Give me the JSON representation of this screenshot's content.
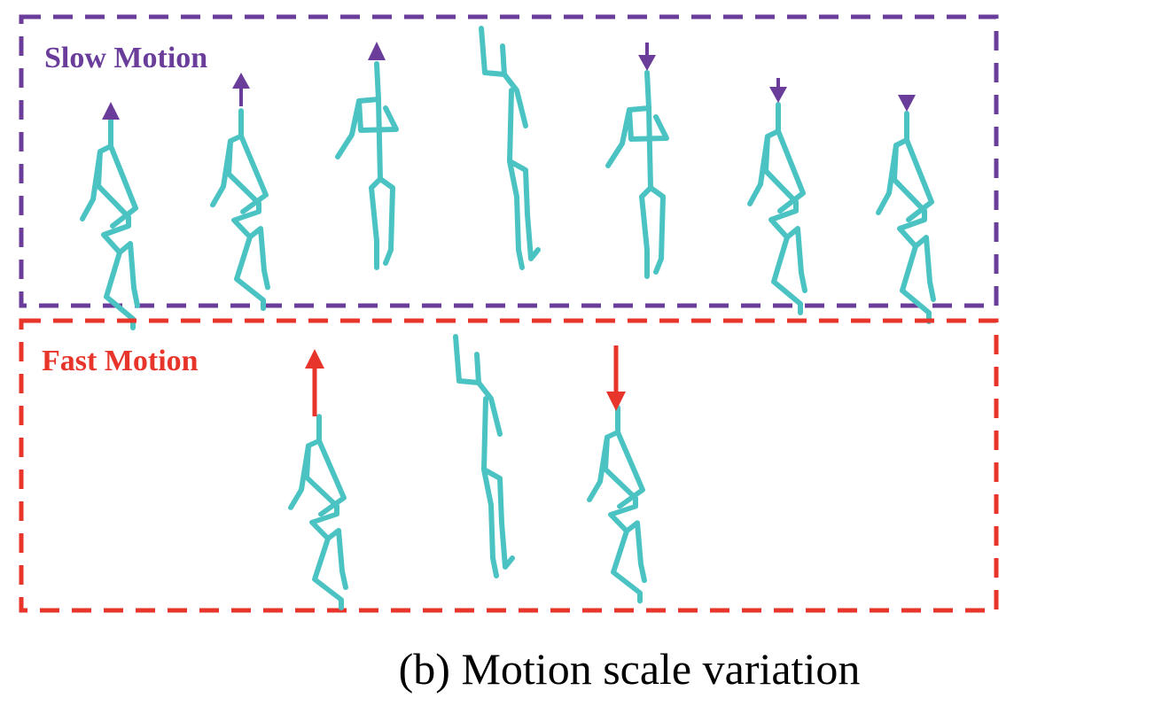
{
  "figure": {
    "caption": "(b) Motion scale variation",
    "skeleton_color": "#4cc3c3",
    "slow_panel": {
      "label": "Slow Motion",
      "color": "#6a3d9a",
      "frame_count": 7,
      "arrows": [
        "up",
        "up",
        "up",
        "none",
        "down",
        "down",
        "down"
      ]
    },
    "fast_panel": {
      "label": "Fast Motion",
      "color": "#e8352b",
      "frame_count": 3,
      "arrows": [
        "up",
        "none",
        "down"
      ]
    }
  }
}
